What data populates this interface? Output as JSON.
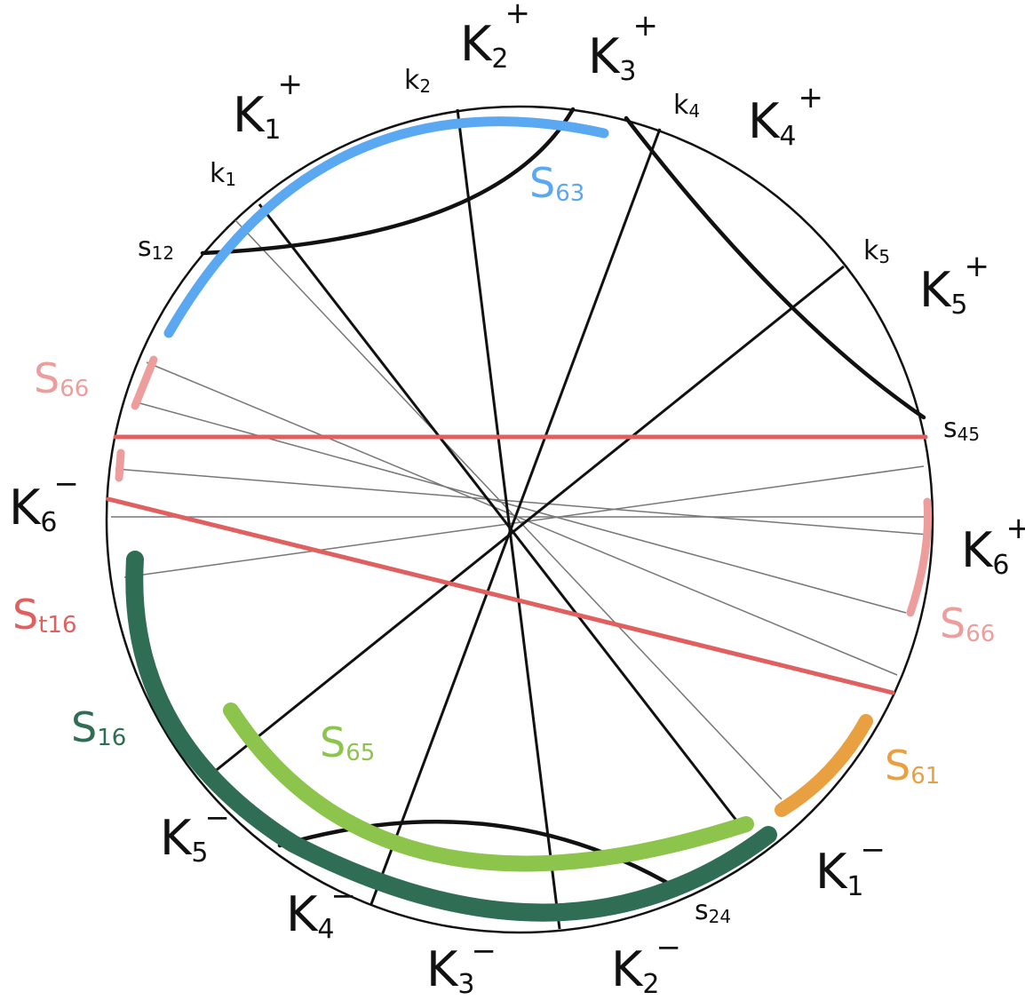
{
  "colors": {
    "blue": "#5aa8f2",
    "pink": "#ee9d9d",
    "red": "#e06060",
    "dark_green": "#2f6e54",
    "light_green": "#8cc44c",
    "orange": "#e8a040",
    "ink": "#111111"
  },
  "labels": {
    "K1_plus": {
      "main": "K",
      "sub": "1",
      "sup": "+"
    },
    "K2_plus": {
      "main": "K",
      "sub": "2",
      "sup": "+"
    },
    "K3_plus": {
      "main": "K",
      "sub": "3",
      "sup": "+"
    },
    "K4_plus": {
      "main": "K",
      "sub": "4",
      "sup": "+"
    },
    "K5_plus": {
      "main": "K",
      "sub": "5",
      "sup": "+"
    },
    "K6_plus": {
      "main": "K",
      "sub": "6",
      "sup": "+"
    },
    "K1_minus": {
      "main": "K",
      "sub": "1",
      "sup": "−"
    },
    "K2_minus": {
      "main": "K",
      "sub": "2",
      "sup": "−"
    },
    "K3_minus": {
      "main": "K",
      "sub": "3",
      "sup": "−"
    },
    "K4_minus": {
      "main": "K",
      "sub": "4",
      "sup": "−"
    },
    "K5_minus": {
      "main": "K",
      "sub": "5",
      "sup": "−"
    },
    "K6_minus": {
      "main": "K",
      "sub": "6",
      "sup": "−"
    },
    "k1": {
      "main": "k",
      "sub": "1"
    },
    "k2": {
      "main": "k",
      "sub": "2"
    },
    "k4": {
      "main": "k",
      "sub": "4"
    },
    "k5": {
      "main": "k",
      "sub": "5"
    },
    "s12": {
      "main": "s",
      "sub": "12"
    },
    "s45": {
      "main": "s",
      "sub": "45"
    },
    "s24": {
      "main": "s",
      "sub": "24"
    },
    "S63": {
      "main": "S",
      "sub": "63"
    },
    "S66_left": {
      "main": "S",
      "sub": "66"
    },
    "S66_right": {
      "main": "S",
      "sub": "66"
    },
    "St16": {
      "main": "S",
      "sub": "t16"
    },
    "S16": {
      "main": "S",
      "sub": "16"
    },
    "S65": {
      "main": "S",
      "sub": "65"
    },
    "S61": {
      "main": "S",
      "sub": "61"
    }
  }
}
